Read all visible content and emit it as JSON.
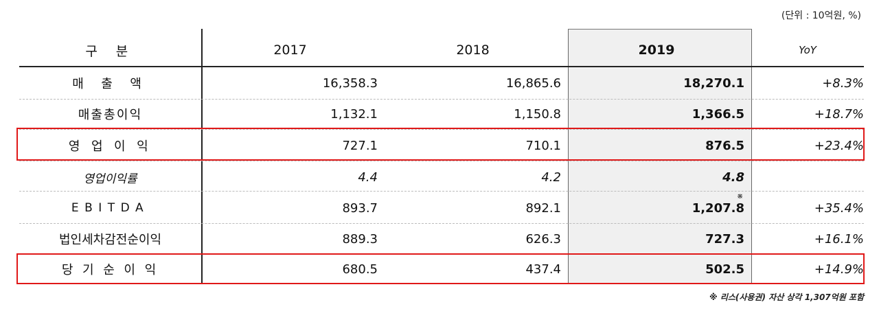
{
  "unit_note": "(단위 : 10억원, %)",
  "header": {
    "label": "구 분",
    "y2017": "2017",
    "y2018": "2018",
    "y2019": "2019",
    "yoy": "YoY"
  },
  "rows": [
    {
      "label": "매 출 액",
      "y2017": "16,358.3",
      "y2018": "16,865.6",
      "y2019": "18,270.1",
      "yoy": "+8.3%"
    },
    {
      "label": "매출총이익",
      "y2017": "1,132.1",
      "y2018": "1,150.8",
      "y2019": "1,366.5",
      "yoy": "+18.7%"
    },
    {
      "label": "영 업 이 익",
      "y2017": "727.1",
      "y2018": "710.1",
      "y2019": "876.5",
      "yoy": "+23.4%"
    },
    {
      "label": "영업이익률",
      "y2017": "4.4",
      "y2018": "4.2",
      "y2019": "4.8",
      "yoy": ""
    },
    {
      "label": "EBITDA",
      "y2017": "893.7",
      "y2018": "892.1",
      "y2019": "1,207.8",
      "yoy": "+35.4%"
    },
    {
      "label": "법인세차감전순이익",
      "y2017": "889.3",
      "y2018": "626.3",
      "y2019": "727.3",
      "yoy": "+16.1%"
    },
    {
      "label": "당 기 순 이 익",
      "y2017": "680.5",
      "y2018": "437.4",
      "y2019": "502.5",
      "yoy": "+14.9%"
    }
  ],
  "ebitda_mark": "※",
  "footnote": "※ 리스(사용권) 자산 상각 1,307억원 포함",
  "colors": {
    "highlight_border": "#e01818",
    "column_2019_bg": "#f0f0f0"
  }
}
